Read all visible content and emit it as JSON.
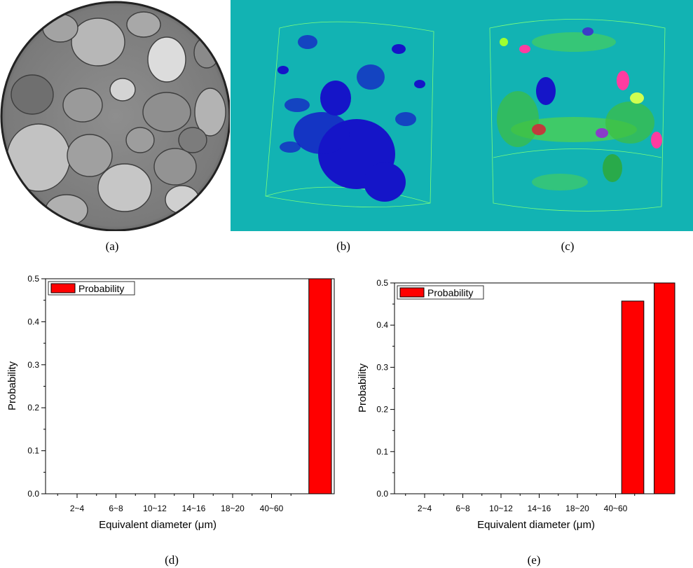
{
  "captions": [
    "(a)",
    "(b)",
    "(c)",
    "(d)",
    "(e)"
  ],
  "colors": {
    "render_background": "#12b3b3",
    "pore_blue": "#1515c8",
    "bar_fill": "#ff0000",
    "bar_stroke": "#000000",
    "ct_gray": "#8a8a8a",
    "outline_green": "#7cff7c"
  },
  "chart_data": [
    {
      "type": "bar",
      "panel": "(d)",
      "xlabel": "Equivalent diameter (μm)",
      "ylabel": "Probability",
      "ylim": [
        0,
        0.5
      ],
      "yticks": [
        "0.0",
        "0.1",
        "0.2",
        "0.3",
        "0.4",
        "0.5"
      ],
      "categories": [
        "2~4",
        "6~8",
        "10~12",
        "14~16",
        "18~20",
        "40~60"
      ],
      "legend": "Probability",
      "legend_position": "top-left",
      "bars": [
        {
          "x_index": 6.25,
          "value": 0.5
        }
      ]
    },
    {
      "type": "bar",
      "panel": "(e)",
      "xlabel": "Equivalent diameter (μm)",
      "ylabel": "Probability",
      "ylim": [
        0,
        0.5
      ],
      "yticks": [
        "0.0",
        "0.1",
        "0.2",
        "0.3",
        "0.4",
        "0.5"
      ],
      "categories": [
        "2~4",
        "6~8",
        "10~12",
        "14~16",
        "18~20",
        "40~60"
      ],
      "legend": "Probability",
      "legend_position": "top-left",
      "bars": [
        {
          "x_index": 5.45,
          "value": 0.457
        },
        {
          "x_index": 6.3,
          "value": 0.5
        }
      ]
    }
  ]
}
